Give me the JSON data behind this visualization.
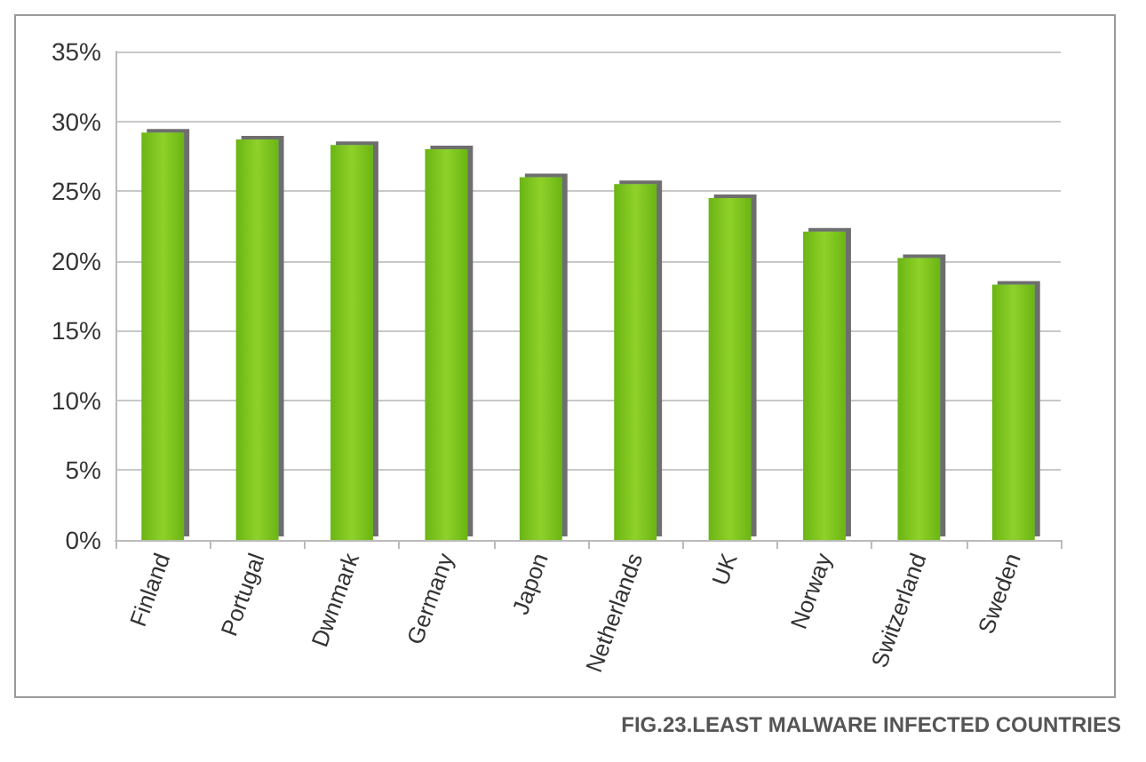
{
  "chart_data": {
    "type": "bar",
    "categories": [
      "Finland",
      "Portugal",
      "Dwnmark",
      "Germany",
      "Japon",
      "Netherlands",
      "UK",
      "Norway",
      "Switzerland",
      "Sweden"
    ],
    "values": [
      29.2,
      28.7,
      28.3,
      28.0,
      26.0,
      25.5,
      24.5,
      22.1,
      20.2,
      18.3
    ],
    "color": "#6ab514",
    "ylim": [
      0,
      35
    ],
    "yticks": [
      {
        "value": 0,
        "label": "0%"
      },
      {
        "value": 5,
        "label": "5%"
      },
      {
        "value": 10,
        "label": "10%"
      },
      {
        "value": 15,
        "label": "15%"
      },
      {
        "value": 20,
        "label": "20%"
      },
      {
        "value": 25,
        "label": "25%"
      },
      {
        "value": 30,
        "label": "30%"
      },
      {
        "value": 35,
        "label": "35%"
      }
    ],
    "grid": "y",
    "annotations": [
      "FIG.23.LEAST MALWARE INFECTED COUNTRIES"
    ]
  }
}
